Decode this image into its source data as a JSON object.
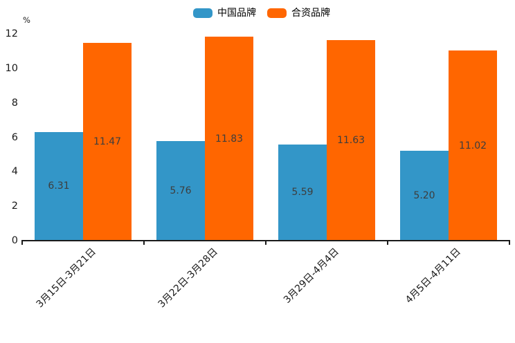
{
  "page": {
    "background": "#ffffff"
  },
  "colors": {
    "series_blue": "#3396c8",
    "series_orange": "#ff6600",
    "axis": "#1a1a1a",
    "tick_label": "#1a1a1a",
    "value_label": "#3d3d3d"
  },
  "legend": {
    "items": [
      {
        "label": "中国品牌",
        "color": "#3396c8"
      },
      {
        "label": "合资品牌",
        "color": "#ff6600"
      }
    ]
  },
  "chart_data": {
    "type": "bar",
    "title": "",
    "unit_label": "%",
    "categories": [
      "3月15日-3月21日",
      "3月22日-3月28日",
      "3月29日-4月4日",
      "4月5日-4月11日"
    ],
    "series": [
      {
        "name": "中国品牌",
        "color": "#3396c8",
        "values": [
          6.31,
          5.76,
          5.59,
          5.2
        ]
      },
      {
        "name": "合资品牌",
        "color": "#ff6600",
        "values": [
          11.47,
          11.83,
          11.63,
          11.02
        ]
      }
    ],
    "value_labels": [
      "6.31",
      "5.76",
      "5.59",
      "5.20",
      "11.47",
      "11.83",
      "11.63",
      "11.02"
    ],
    "xlabel": "",
    "ylabel": "%",
    "ylim": [
      0,
      12
    ],
    "yticks": [
      0,
      2,
      4,
      6,
      8,
      10,
      12
    ],
    "grid": false,
    "legend_position": "top-center",
    "x_tick_rotation_deg": 45
  }
}
